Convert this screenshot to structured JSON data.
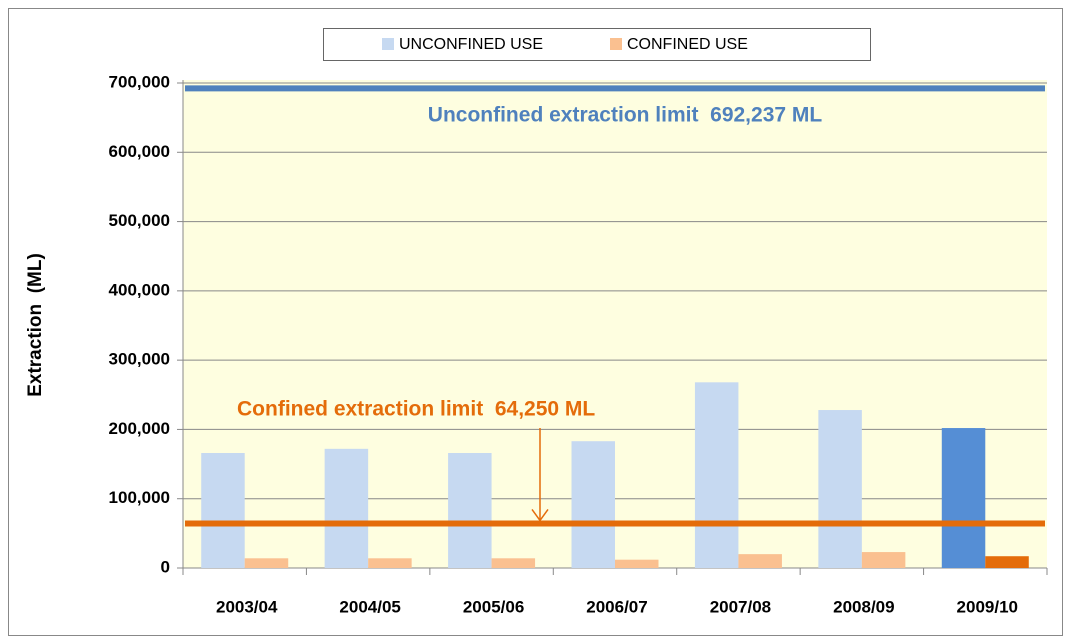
{
  "chart_data": {
    "type": "bar",
    "y_label": "Extraction  (ML)",
    "categories": [
      "2003/04",
      "2004/05",
      "2005/06",
      "2006/07",
      "2007/08",
      "2008/09",
      "2009/10"
    ],
    "series": [
      {
        "name": "UNCONFINED USE",
        "color": "#c6d9f1",
        "colors": [
          "#c6d9f1",
          "#c6d9f1",
          "#c6d9f1",
          "#c6d9f1",
          "#c6d9f1",
          "#c6d9f1",
          "#558ed5"
        ],
        "values": [
          166000,
          172000,
          166000,
          183000,
          268000,
          228000,
          202000
        ]
      },
      {
        "name": "CONFINED USE",
        "color": "#fac090",
        "colors": [
          "#fac090",
          "#fac090",
          "#fac090",
          "#fac090",
          "#fac090",
          "#fac090",
          "#e46c0a"
        ],
        "values": [
          14000,
          14000,
          14000,
          12000,
          20000,
          23000,
          17000
        ]
      }
    ],
    "reference_lines": [
      {
        "value": 692237,
        "label": "Unconfined extraction limit  692,237 ML",
        "color": "#4f81bd"
      },
      {
        "value": 64250,
        "label": "Confined extraction limit  64,250 ML",
        "color": "#e46c0a"
      }
    ],
    "ylim": [
      0,
      700000
    ],
    "yticks": [
      {
        "value": 0,
        "label": "0"
      },
      {
        "value": 100000,
        "label": "100,000"
      },
      {
        "value": 200000,
        "label": "200,000"
      },
      {
        "value": 300000,
        "label": "300,000"
      },
      {
        "value": 400000,
        "label": "400,000"
      },
      {
        "value": 500000,
        "label": "500,000"
      },
      {
        "value": 600000,
        "label": "600,000"
      },
      {
        "value": 700000,
        "label": "700,000"
      }
    ],
    "grid": true,
    "plot_background": "#fefee0"
  }
}
